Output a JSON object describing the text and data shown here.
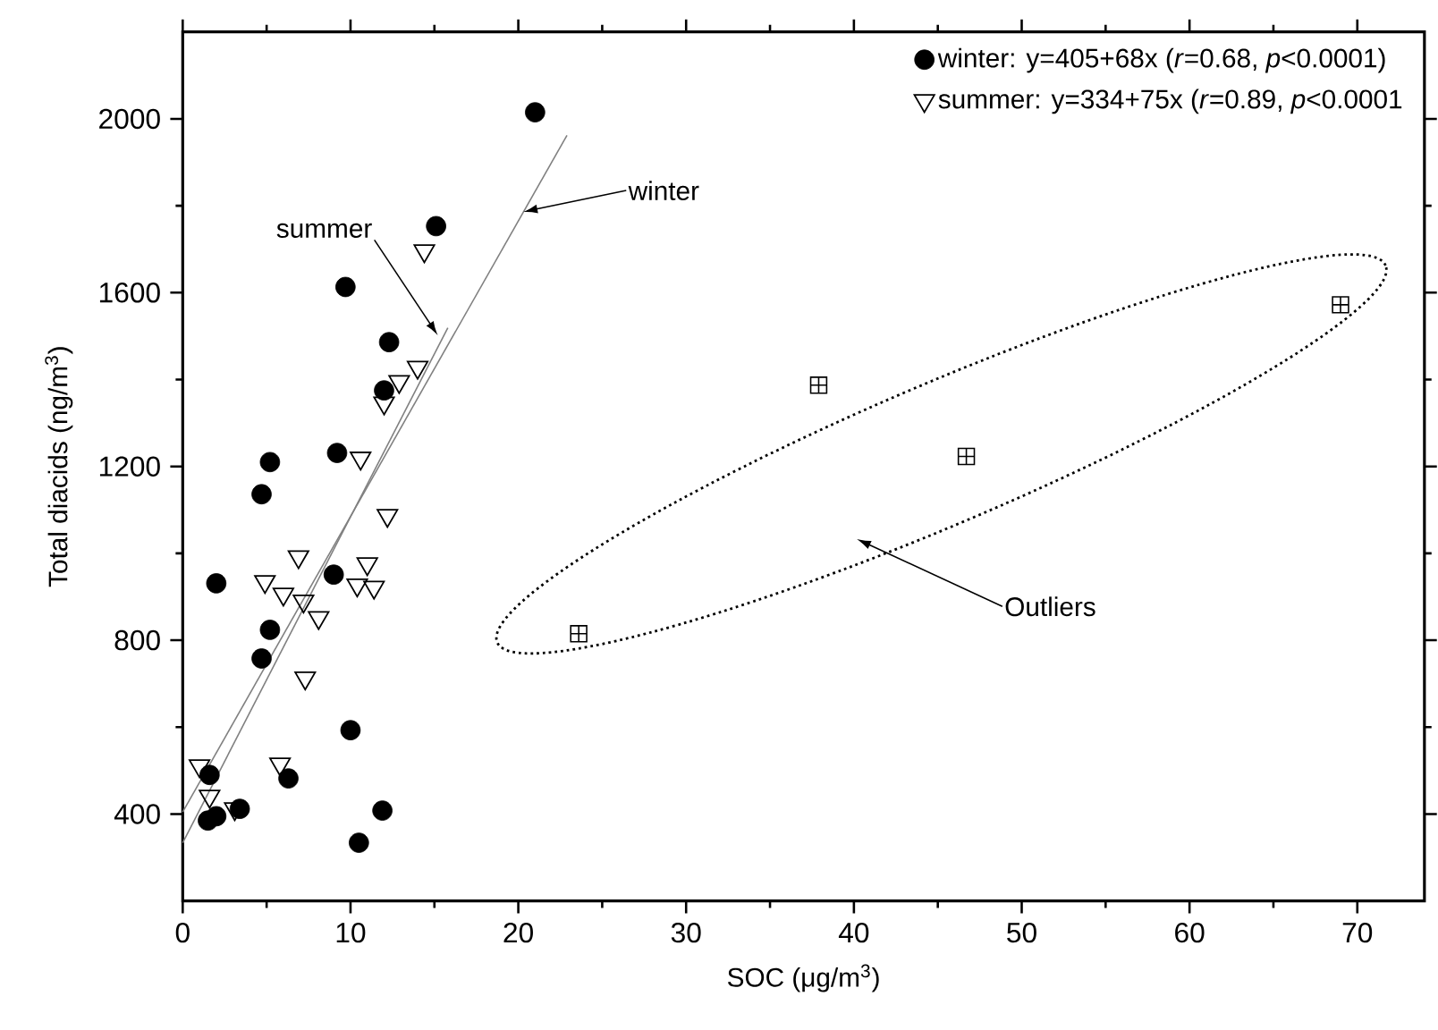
{
  "chart_data": {
    "type": "scatter",
    "xlabel": "SOC (μg/m$^{3}$)",
    "ylabel": "Total diacids (ng/m$^{3}$)",
    "xlim": [
      0,
      74
    ],
    "xticks": [
      0,
      10,
      20,
      30,
      40,
      50,
      60,
      70
    ],
    "ylim": [
      200,
      2200
    ],
    "yticks": [
      400,
      800,
      1200,
      1600,
      2000
    ],
    "legend": "top right",
    "series": [
      {
        "name": "winter: y=405+68x   (*r*=0.68, *p*<0.0001)",
        "marker": "circle",
        "color": "#000000",
        "x": [
          21.0,
          15.1,
          9.7,
          12.3,
          12.0,
          5.2,
          9.2,
          4.7,
          9.0,
          2.0,
          5.2,
          4.7,
          10.0,
          6.3,
          1.6,
          1.5,
          2.0,
          3.4,
          11.9,
          10.5
        ],
        "values": [
          2015,
          1753,
          1613,
          1486,
          1375,
          1210,
          1231,
          1136,
          951,
          931,
          824,
          758,
          593,
          482,
          490,
          385,
          395,
          412,
          408,
          334
        ]
      },
      {
        "name": "summer: y=334+75x   (*r*=0.89, *p*<0.0001",
        "marker": "triangle",
        "color": "#000000",
        "x": [
          14.4,
          14.0,
          12.9,
          12.0,
          10.6,
          12.2,
          6.9,
          11.0,
          4.9,
          6.0,
          7.2,
          10.4,
          11.4,
          8.1,
          7.3,
          5.8,
          1.0,
          1.6,
          3.1
        ],
        "values": [
          1696,
          1428,
          1395,
          1346,
          1219,
          1087,
          992,
          976,
          935,
          906,
          890,
          927,
          922,
          852,
          713,
          515,
          511,
          441,
          412
        ]
      },
      {
        "marker": "cross",
        "color": "#000000",
        "x": [
          23.6,
          37.9,
          46.7,
          69.0
        ],
        "values": [
          815,
          1387,
          1223,
          1572
        ]
      },
      {
        "type": "line",
        "marker": "none",
        "color": "#808080",
        "x": [
          0,
          22.9
        ],
        "values": [
          405,
          1962
        ]
      },
      {
        "type": "line",
        "marker": "none",
        "color": "#808080",
        "x": [
          0,
          15.8
        ],
        "values": [
          334,
          1519
        ]
      }
    ],
    "annotations": [
      {
        "text": "winter",
        "x": 20.3,
        "y": 1786
      },
      {
        "text": "summer",
        "x": 15.2,
        "y": 1502
      },
      "Outliers"
    ]
  }
}
